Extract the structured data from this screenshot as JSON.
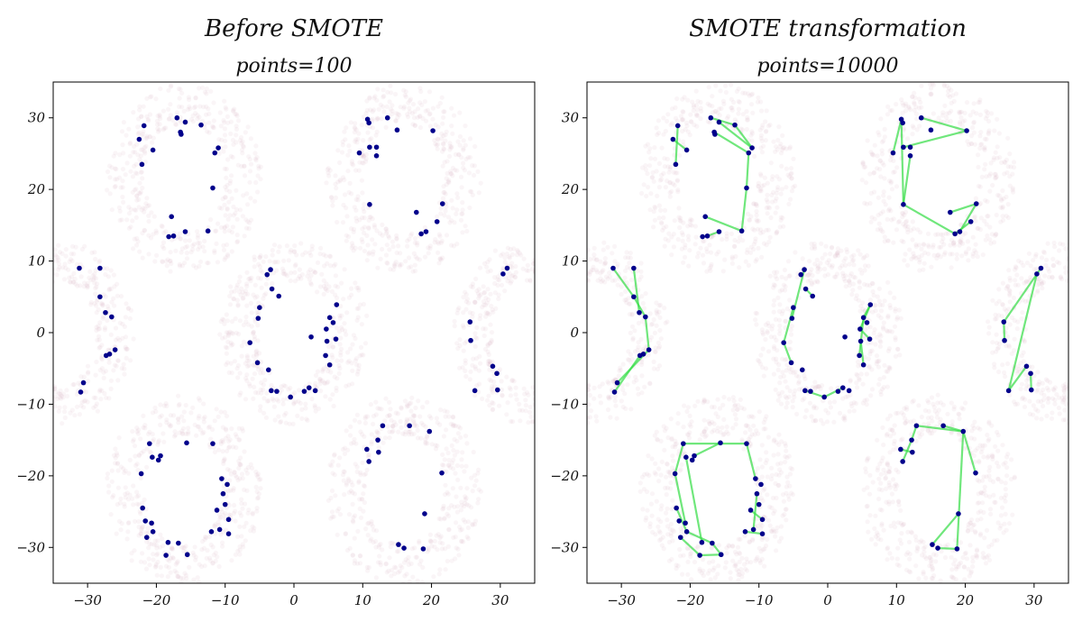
{
  "chart_data": [
    {
      "type": "scatter",
      "title": "Before SMOTE",
      "subtitle": "points=100",
      "xlabel": "",
      "ylabel": "",
      "xlim": [
        -35,
        35
      ],
      "ylim": [
        -35,
        35
      ],
      "xticks": [
        -30,
        -20,
        -10,
        0,
        10,
        20,
        30
      ],
      "yticks": [
        -30,
        -20,
        -10,
        0,
        10,
        20,
        30
      ],
      "xtick_labels": [
        "−30",
        "−20",
        "−10",
        "0",
        "10",
        "20",
        "30"
      ],
      "ytick_labels": [
        "−30",
        "−20",
        "−10",
        "0",
        "10",
        "20",
        "30"
      ],
      "grid": false,
      "colors": {
        "points": "#00008b",
        "background_points": "#d9b8c4",
        "smote_lines": "#33dd44"
      },
      "series": [
        {
          "role": "minority_points",
          "points": [
            [
              -21.8,
              28.9
            ],
            [
              -17,
              30
            ],
            [
              -15.8,
              29.4
            ],
            [
              -16.5,
              28
            ],
            [
              -22.5,
              27
            ],
            [
              -20.5,
              25.5
            ],
            [
              -22.1,
              23.5
            ],
            [
              -13.5,
              29
            ],
            [
              -11,
              25.8
            ],
            [
              -11.5,
              25.1
            ],
            [
              -16.4,
              27.7
            ],
            [
              -11.8,
              20.2
            ],
            [
              -17.8,
              16.2
            ],
            [
              -17.5,
              13.5
            ],
            [
              -18.2,
              13.4
            ],
            [
              -15.8,
              14.1
            ],
            [
              -12.5,
              14.2
            ],
            [
              10.7,
              29.8
            ],
            [
              10.9,
              29.3
            ],
            [
              13.6,
              30
            ],
            [
              15,
              28.3
            ],
            [
              20.2,
              28.2
            ],
            [
              9.5,
              25.1
            ],
            [
              11,
              25.9
            ],
            [
              12,
              24.7
            ],
            [
              12,
              25.9
            ],
            [
              11,
              17.9
            ],
            [
              17.8,
              16.8
            ],
            [
              18.5,
              13.8
            ],
            [
              19.2,
              14.1
            ],
            [
              21.6,
              18
            ],
            [
              20.8,
              15.5
            ],
            [
              -31.2,
              9
            ],
            [
              -28.2,
              9
            ],
            [
              -28.2,
              5
            ],
            [
              -27.4,
              2.8
            ],
            [
              -26.5,
              2.2
            ],
            [
              -26,
              -2.4
            ],
            [
              -26.8,
              -3
            ],
            [
              -27.3,
              -3.2
            ],
            [
              -30.6,
              -7
            ],
            [
              -31,
              -8.3
            ],
            [
              -3.4,
              8.8
            ],
            [
              -3.9,
              8.1
            ],
            [
              -3.2,
              6.1
            ],
            [
              -2.2,
              5.1
            ],
            [
              -5,
              3.5
            ],
            [
              -5.2,
              2
            ],
            [
              2.5,
              -0.6
            ],
            [
              -6.4,
              -1.4
            ],
            [
              -5.3,
              -4.2
            ],
            [
              -3.7,
              -5.2
            ],
            [
              -3.3,
              -8.1
            ],
            [
              -2.5,
              -8.2
            ],
            [
              -0.5,
              -9
            ],
            [
              1.5,
              -8.2
            ],
            [
              2.2,
              -7.7
            ],
            [
              3.1,
              -8.1
            ],
            [
              6.2,
              3.9
            ],
            [
              5.2,
              2.1
            ],
            [
              5.7,
              1.4
            ],
            [
              4.7,
              0.5
            ],
            [
              6.1,
              -0.9
            ],
            [
              4.8,
              -1.2
            ],
            [
              4.6,
              -3.2
            ],
            [
              5.2,
              -4.5
            ],
            [
              30.4,
              8.2
            ],
            [
              31,
              9
            ],
            [
              25.6,
              1.5
            ],
            [
              25.7,
              -1.1
            ],
            [
              28.9,
              -4.7
            ],
            [
              29.5,
              -5.7
            ],
            [
              26.3,
              -8.1
            ],
            [
              29.6,
              -8
            ],
            [
              -21,
              -15.5
            ],
            [
              -19.4,
              -17.2
            ],
            [
              -20.6,
              -17.4
            ],
            [
              -19.7,
              -17.8
            ],
            [
              -15.6,
              -15.4
            ],
            [
              -11.8,
              -15.5
            ],
            [
              -22.2,
              -19.7
            ],
            [
              -10.5,
              -20.4
            ],
            [
              -9.7,
              -21.2
            ],
            [
              -10.3,
              -22.5
            ],
            [
              -10,
              -24
            ],
            [
              -22,
              -24.5
            ],
            [
              -11.2,
              -24.8
            ],
            [
              -21.6,
              -26.3
            ],
            [
              -20.7,
              -26.6
            ],
            [
              -9.5,
              -26.1
            ],
            [
              -20.5,
              -27.8
            ],
            [
              -21.4,
              -28.6
            ],
            [
              -18.3,
              -29.3
            ],
            [
              -16.8,
              -29.4
            ],
            [
              -10.8,
              -27.5
            ],
            [
              -12,
              -27.8
            ],
            [
              -9.5,
              -28.1
            ],
            [
              -18.6,
              -31.1
            ],
            [
              -15.5,
              -31
            ],
            [
              12.2,
              -15
            ],
            [
              12.3,
              -16.7
            ],
            [
              10.6,
              -16.3
            ],
            [
              10.9,
              -18
            ],
            [
              12.9,
              -13
            ],
            [
              16.8,
              -13
            ],
            [
              19.7,
              -13.8
            ],
            [
              21.5,
              -19.6
            ],
            [
              19,
              -25.3
            ],
            [
              15.2,
              -29.6
            ],
            [
              16,
              -30.1
            ],
            [
              18.8,
              -30.2
            ]
          ]
        },
        {
          "role": "background_rings",
          "rings": [
            {
              "cx": -16,
              "cy": 21.5,
              "rx": 8.5,
              "ry": 10.5
            },
            {
              "cx": 16,
              "cy": 21.5,
              "rx": 8.5,
              "ry": 10.5
            },
            {
              "cx": 0,
              "cy": 0,
              "rx": 8,
              "ry": 10
            },
            {
              "cx": -16,
              "cy": -22,
              "rx": 8.5,
              "ry": 10.5
            },
            {
              "cx": 16,
              "cy": -22,
              "rx": 8.5,
              "ry": 10.5
            },
            {
              "cx": -34,
              "cy": 0,
              "rx": 8,
              "ry": 10
            },
            {
              "cx": 34,
              "cy": 0,
              "rx": 8,
              "ry": 10
            }
          ],
          "ring_thickness": 3.5
        }
      ]
    },
    {
      "type": "scatter",
      "title": "SMOTE transformation",
      "subtitle": "points=10000",
      "xlabel": "",
      "ylabel": "",
      "xlim": [
        -35,
        35
      ],
      "ylim": [
        -35,
        35
      ],
      "xticks": [
        -30,
        -20,
        -10,
        0,
        10,
        20,
        30
      ],
      "yticks": [
        -30,
        -20,
        -10,
        0,
        10,
        20,
        30
      ],
      "xtick_labels": [
        "−30",
        "−20",
        "−10",
        "0",
        "10",
        "20",
        "30"
      ],
      "ytick_labels": [
        "−30",
        "−20",
        "−10",
        "0",
        "10",
        "20",
        "30"
      ],
      "grid": false,
      "smote_segments": [
        [
          [
            -21.8,
            28.9
          ],
          [
            -22.1,
            23.5
          ]
        ],
        [
          [
            -22.5,
            27
          ],
          [
            -20.5,
            25.5
          ]
        ],
        [
          [
            -17,
            30
          ],
          [
            -13.5,
            29
          ]
        ],
        [
          [
            -16.5,
            28
          ],
          [
            -11.5,
            25.1
          ]
        ],
        [
          [
            -15.8,
            29.4
          ],
          [
            -11,
            25.8
          ]
        ],
        [
          [
            -11.8,
            20.2
          ],
          [
            -12.5,
            14.2
          ]
        ],
        [
          [
            -11.5,
            25.1
          ],
          [
            -11.8,
            20.2
          ]
        ],
        [
          [
            -17.8,
            16.2
          ],
          [
            -12.5,
            14.2
          ]
        ],
        [
          [
            -17.5,
            13.5
          ],
          [
            -15.8,
            14.1
          ]
        ],
        [
          [
            -13.5,
            29
          ],
          [
            -11,
            25.8
          ]
        ],
        [
          [
            10.7,
            29.8
          ],
          [
            9.5,
            25.1
          ]
        ],
        [
          [
            10.7,
            29.8
          ],
          [
            11,
            17.9
          ]
        ],
        [
          [
            13.6,
            30
          ],
          [
            20.2,
            28.2
          ]
        ],
        [
          [
            11,
            25.9
          ],
          [
            20.2,
            28.2
          ]
        ],
        [
          [
            11,
            17.9
          ],
          [
            18.5,
            13.8
          ]
        ],
        [
          [
            17.8,
            16.8
          ],
          [
            21.6,
            18
          ]
        ],
        [
          [
            19.2,
            14.1
          ],
          [
            21.6,
            18
          ]
        ],
        [
          [
            12,
            24.7
          ],
          [
            11,
            17.9
          ]
        ],
        [
          [
            20.8,
            15.5
          ],
          [
            18.5,
            13.8
          ]
        ],
        [
          [
            -31.2,
            9
          ],
          [
            -28.2,
            5
          ]
        ],
        [
          [
            -28.2,
            9
          ],
          [
            -27.4,
            2.8
          ]
        ],
        [
          [
            -28.2,
            5
          ],
          [
            -26.5,
            2.2
          ]
        ],
        [
          [
            -26,
            -2.4
          ],
          [
            -30.6,
            -7
          ]
        ],
        [
          [
            -27.3,
            -3.2
          ],
          [
            -31,
            -8.3
          ]
        ],
        [
          [
            -26.5,
            2.2
          ],
          [
            -26,
            -2.4
          ]
        ],
        [
          [
            -3.4,
            8.8
          ],
          [
            -5.2,
            2
          ]
        ],
        [
          [
            -3.2,
            6.1
          ],
          [
            -2.2,
            5.1
          ]
        ],
        [
          [
            -5,
            3.5
          ],
          [
            -6.4,
            -1.4
          ]
        ],
        [
          [
            -6.4,
            -1.4
          ],
          [
            -5.3,
            -4.2
          ]
        ],
        [
          [
            -3.3,
            -8.1
          ],
          [
            -0.5,
            -9
          ]
        ],
        [
          [
            -0.5,
            -9
          ],
          [
            2.2,
            -7.7
          ]
        ],
        [
          [
            6.2,
            3.9
          ],
          [
            5.2,
            2.1
          ]
        ],
        [
          [
            5.2,
            2.1
          ],
          [
            4.6,
            -3.2
          ]
        ],
        [
          [
            4.7,
            0.5
          ],
          [
            6.1,
            -0.9
          ]
        ],
        [
          [
            4.8,
            -1.2
          ],
          [
            5.2,
            -4.5
          ]
        ],
        [
          [
            6.2,
            3.9
          ],
          [
            4.7,
            0.5
          ]
        ],
        [
          [
            31,
            9
          ],
          [
            25.6,
            1.5
          ]
        ],
        [
          [
            30.4,
            8.2
          ],
          [
            26.3,
            -8.1
          ]
        ],
        [
          [
            25.6,
            1.5
          ],
          [
            25.7,
            -1.1
          ]
        ],
        [
          [
            28.9,
            -4.7
          ],
          [
            26.3,
            -8.1
          ]
        ],
        [
          [
            29.5,
            -5.7
          ],
          [
            29.6,
            -8
          ]
        ],
        [
          [
            -21,
            -15.5
          ],
          [
            -11.8,
            -15.5
          ]
        ],
        [
          [
            -21,
            -15.5
          ],
          [
            -22.2,
            -19.7
          ]
        ],
        [
          [
            -19.4,
            -17.2
          ],
          [
            -15.6,
            -15.4
          ]
        ],
        [
          [
            -11.8,
            -15.5
          ],
          [
            -10.5,
            -20.4
          ]
        ],
        [
          [
            -22.2,
            -19.7
          ],
          [
            -20.7,
            -26.6
          ]
        ],
        [
          [
            -20.6,
            -17.4
          ],
          [
            -18.3,
            -29.3
          ]
        ],
        [
          [
            -10.3,
            -22.5
          ],
          [
            -10.8,
            -27.5
          ]
        ],
        [
          [
            -21.4,
            -28.6
          ],
          [
            -18.6,
            -31.1
          ]
        ],
        [
          [
            -18.6,
            -31.1
          ],
          [
            -15.5,
            -31
          ]
        ],
        [
          [
            -20.5,
            -27.8
          ],
          [
            -16.8,
            -29.4
          ]
        ],
        [
          [
            -12,
            -27.8
          ],
          [
            -9.5,
            -28.1
          ]
        ],
        [
          [
            -16.8,
            -29.4
          ],
          [
            -15.5,
            -31
          ]
        ],
        [
          [
            -22,
            -24.5
          ],
          [
            -20.5,
            -27.8
          ]
        ],
        [
          [
            -11.2,
            -24.8
          ],
          [
            -9.5,
            -26.1
          ]
        ],
        [
          [
            12.2,
            -15
          ],
          [
            12.9,
            -13
          ]
        ],
        [
          [
            12.9,
            -13
          ],
          [
            19.7,
            -13.8
          ]
        ],
        [
          [
            12.3,
            -16.7
          ],
          [
            10.6,
            -16.3
          ]
        ],
        [
          [
            10.9,
            -18
          ],
          [
            12.2,
            -15
          ]
        ],
        [
          [
            19.7,
            -13.8
          ],
          [
            21.5,
            -19.6
          ]
        ],
        [
          [
            19.7,
            -13.8
          ],
          [
            18.8,
            -30.2
          ]
        ],
        [
          [
            19,
            -25.3
          ],
          [
            15.2,
            -29.6
          ]
        ],
        [
          [
            16,
            -30.1
          ],
          [
            18.8,
            -30.2
          ]
        ],
        [
          [
            16.8,
            -13
          ],
          [
            19.7,
            -13.8
          ]
        ]
      ],
      "series": [
        {
          "role": "minority_points",
          "same_as_left": true
        },
        {
          "role": "background_rings",
          "same_as_left": true
        }
      ]
    }
  ]
}
